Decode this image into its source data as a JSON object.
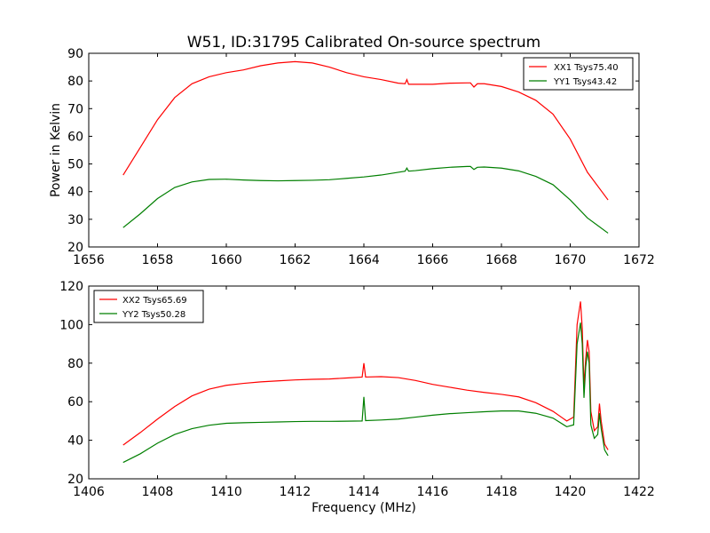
{
  "title": "W51, ID:31795 Calibrated On-source spectrum",
  "colors": {
    "xx": "#ff0000",
    "yy": "#007f00"
  },
  "chart_data": [
    {
      "type": "line",
      "title": "W51, ID:31795 Calibrated On-source spectrum",
      "xlabel": "",
      "ylabel": "Power in Kelvin",
      "xlim": [
        1656,
        1672
      ],
      "ylim": [
        20,
        90
      ],
      "xticks": [
        1656,
        1658,
        1660,
        1662,
        1664,
        1666,
        1668,
        1670,
        1672
      ],
      "yticks": [
        20,
        30,
        40,
        50,
        60,
        70,
        80,
        90
      ],
      "grid": false,
      "legend": "top-right",
      "series": [
        {
          "name": "XX1 Tsys75.40",
          "color": "#ff0000",
          "points": [
            [
              1657.0,
              46
            ],
            [
              1657.5,
              56
            ],
            [
              1658.0,
              66
            ],
            [
              1658.5,
              74
            ],
            [
              1659.0,
              79
            ],
            [
              1659.5,
              81.5
            ],
            [
              1660.0,
              83
            ],
            [
              1660.5,
              84
            ],
            [
              1661.0,
              85.5
            ],
            [
              1661.5,
              86.5
            ],
            [
              1662.0,
              87
            ],
            [
              1662.5,
              86.5
            ],
            [
              1663.0,
              85
            ],
            [
              1663.5,
              83
            ],
            [
              1664.0,
              81.5
            ],
            [
              1664.5,
              80.5
            ],
            [
              1665.0,
              79.2
            ],
            [
              1665.2,
              79
            ],
            [
              1665.25,
              80.5
            ],
            [
              1665.3,
              78.8
            ],
            [
              1665.5,
              78.8
            ],
            [
              1666.0,
              78.8
            ],
            [
              1666.5,
              79.2
            ],
            [
              1667.0,
              79.3
            ],
            [
              1667.1,
              79.3
            ],
            [
              1667.2,
              77.8
            ],
            [
              1667.3,
              79
            ],
            [
              1667.5,
              79
            ],
            [
              1668.0,
              78
            ],
            [
              1668.5,
              76
            ],
            [
              1669.0,
              73
            ],
            [
              1669.5,
              68
            ],
            [
              1670.0,
              59
            ],
            [
              1670.5,
              47
            ],
            [
              1671.1,
              37
            ]
          ]
        },
        {
          "name": "YY1 Tsys43.42",
          "color": "#007f00",
          "points": [
            [
              1657.0,
              27
            ],
            [
              1657.5,
              32
            ],
            [
              1658.0,
              37.5
            ],
            [
              1658.5,
              41.5
            ],
            [
              1659.0,
              43.5
            ],
            [
              1659.5,
              44.4
            ],
            [
              1660.0,
              44.5
            ],
            [
              1660.5,
              44.2
            ],
            [
              1661.0,
              44
            ],
            [
              1661.5,
              43.9
            ],
            [
              1662.0,
              44
            ],
            [
              1662.5,
              44.1
            ],
            [
              1663.0,
              44.3
            ],
            [
              1663.5,
              44.8
            ],
            [
              1664.0,
              45.3
            ],
            [
              1664.5,
              46
            ],
            [
              1665.0,
              47
            ],
            [
              1665.2,
              47.4
            ],
            [
              1665.25,
              48.5
            ],
            [
              1665.3,
              47.4
            ],
            [
              1665.5,
              47.6
            ],
            [
              1666.0,
              48.3
            ],
            [
              1666.5,
              48.8
            ],
            [
              1667.0,
              49.1
            ],
            [
              1667.1,
              49.1
            ],
            [
              1667.2,
              48
            ],
            [
              1667.3,
              48.8
            ],
            [
              1667.5,
              48.9
            ],
            [
              1668.0,
              48.5
            ],
            [
              1668.5,
              47.5
            ],
            [
              1669.0,
              45.5
            ],
            [
              1669.5,
              42.5
            ],
            [
              1670.0,
              37
            ],
            [
              1670.5,
              30.5
            ],
            [
              1671.1,
              25
            ]
          ]
        }
      ]
    },
    {
      "type": "line",
      "title": "",
      "xlabel": "Frequency (MHz)",
      "ylabel": "",
      "xlim": [
        1406,
        1422
      ],
      "ylim": [
        20,
        120
      ],
      "xticks": [
        1406,
        1408,
        1410,
        1412,
        1414,
        1416,
        1418,
        1420,
        1422
      ],
      "yticks": [
        20,
        40,
        60,
        80,
        100,
        120
      ],
      "grid": false,
      "legend": "top-left",
      "series": [
        {
          "name": "XX2 Tsys65.69",
          "color": "#ff0000",
          "points": [
            [
              1407.0,
              37.5
            ],
            [
              1407.5,
              44
            ],
            [
              1408.0,
              51
            ],
            [
              1408.5,
              57.5
            ],
            [
              1409.0,
              63
            ],
            [
              1409.5,
              66.5
            ],
            [
              1410.0,
              68.5
            ],
            [
              1410.5,
              69.5
            ],
            [
              1411.0,
              70.3
            ],
            [
              1411.5,
              70.8
            ],
            [
              1412.0,
              71.3
            ],
            [
              1412.5,
              71.6
            ],
            [
              1413.0,
              71.8
            ],
            [
              1413.5,
              72.3
            ],
            [
              1413.95,
              72.8
            ],
            [
              1414.0,
              80
            ],
            [
              1414.05,
              72.8
            ],
            [
              1414.5,
              73
            ],
            [
              1415.0,
              72.5
            ],
            [
              1415.5,
              71
            ],
            [
              1416.0,
              69
            ],
            [
              1416.5,
              67.5
            ],
            [
              1417.0,
              66
            ],
            [
              1417.5,
              64.8
            ],
            [
              1418.0,
              63.8
            ],
            [
              1418.5,
              62.5
            ],
            [
              1419.0,
              59.5
            ],
            [
              1419.5,
              55
            ],
            [
              1419.9,
              50
            ],
            [
              1420.1,
              52
            ],
            [
              1420.2,
              100
            ],
            [
              1420.3,
              112
            ],
            [
              1420.35,
              98
            ],
            [
              1420.4,
              68
            ],
            [
              1420.45,
              82
            ],
            [
              1420.5,
              92
            ],
            [
              1420.55,
              86
            ],
            [
              1420.6,
              55
            ],
            [
              1420.7,
              45
            ],
            [
              1420.8,
              47
            ],
            [
              1420.85,
              59
            ],
            [
              1420.9,
              50
            ],
            [
              1421.0,
              38
            ],
            [
              1421.1,
              35
            ]
          ]
        },
        {
          "name": "YY2 Tsys50.28",
          "color": "#007f00",
          "points": [
            [
              1407.0,
              28.5
            ],
            [
              1407.5,
              33
            ],
            [
              1408.0,
              38.5
            ],
            [
              1408.5,
              43
            ],
            [
              1409.0,
              46
            ],
            [
              1409.5,
              47.8
            ],
            [
              1410.0,
              48.8
            ],
            [
              1410.5,
              49.1
            ],
            [
              1411.0,
              49.3
            ],
            [
              1411.5,
              49.5
            ],
            [
              1412.0,
              49.7
            ],
            [
              1412.5,
              49.8
            ],
            [
              1413.0,
              49.8
            ],
            [
              1413.5,
              49.9
            ],
            [
              1413.95,
              50
            ],
            [
              1414.0,
              62.5
            ],
            [
              1414.05,
              50.2
            ],
            [
              1414.5,
              50.5
            ],
            [
              1415.0,
              51
            ],
            [
              1415.5,
              52
            ],
            [
              1416.0,
              53
            ],
            [
              1416.5,
              53.8
            ],
            [
              1417.0,
              54.3
            ],
            [
              1417.5,
              54.8
            ],
            [
              1418.0,
              55.2
            ],
            [
              1418.5,
              55.2
            ],
            [
              1419.0,
              54
            ],
            [
              1419.5,
              51.5
            ],
            [
              1419.9,
              47
            ],
            [
              1420.1,
              48
            ],
            [
              1420.2,
              90
            ],
            [
              1420.3,
              101
            ],
            [
              1420.35,
              90
            ],
            [
              1420.4,
              62
            ],
            [
              1420.45,
              78
            ],
            [
              1420.5,
              86
            ],
            [
              1420.55,
              80
            ],
            [
              1420.6,
              48
            ],
            [
              1420.7,
              41
            ],
            [
              1420.8,
              43
            ],
            [
              1420.85,
              54
            ],
            [
              1420.9,
              46
            ],
            [
              1421.0,
              35
            ],
            [
              1421.1,
              32
            ]
          ]
        }
      ]
    }
  ]
}
